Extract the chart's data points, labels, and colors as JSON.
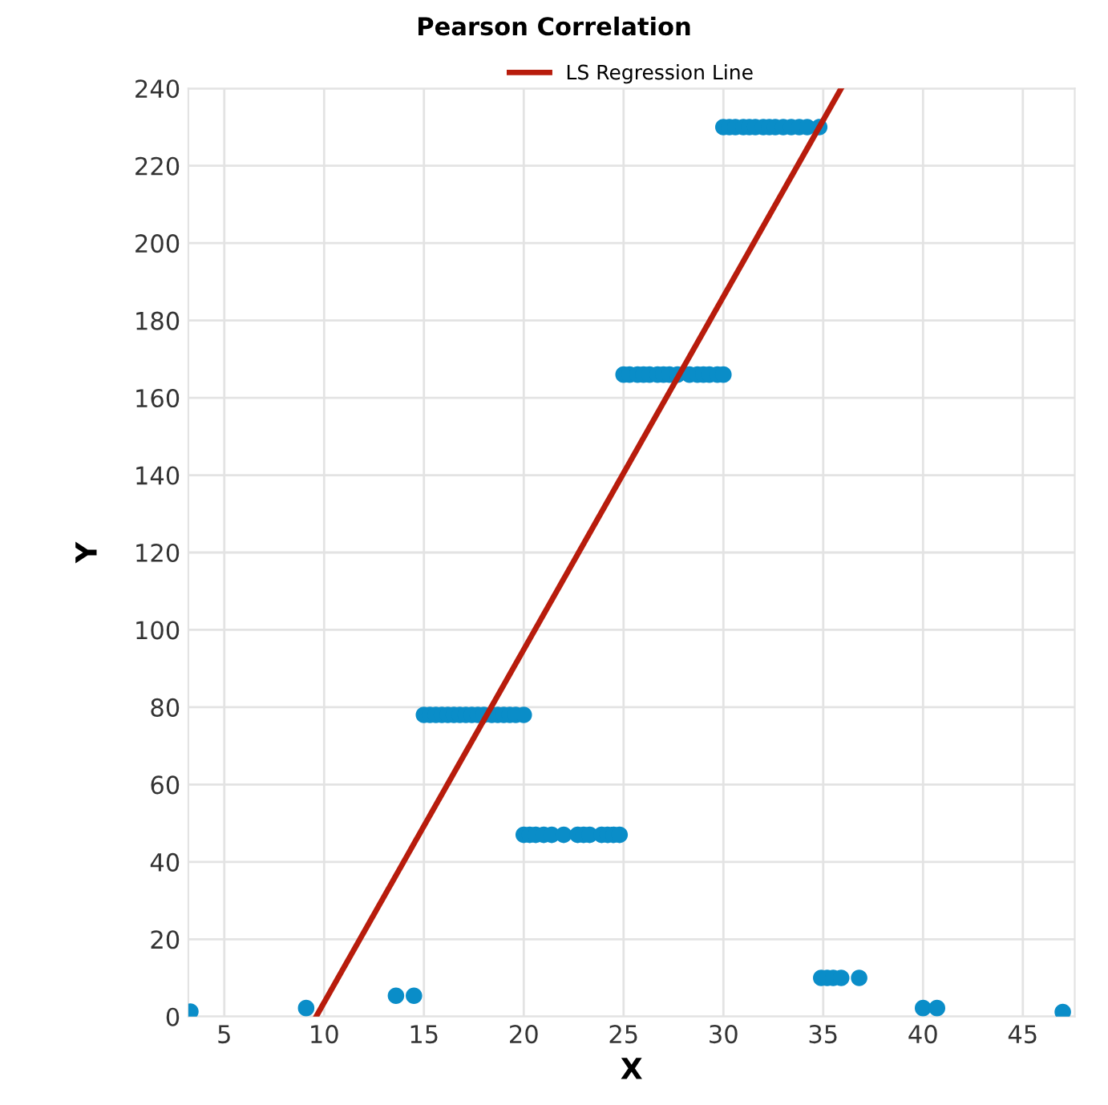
{
  "chart_data": {
    "type": "scatter",
    "title": "Pearson Correlation",
    "xlabel": "X",
    "ylabel": "Y",
    "xlim": [
      3.2,
      47.6
    ],
    "ylim": [
      0,
      240
    ],
    "xticks": [
      5,
      10,
      15,
      20,
      25,
      30,
      35,
      40,
      45
    ],
    "yticks": [
      0,
      20,
      40,
      60,
      80,
      100,
      120,
      140,
      160,
      180,
      200,
      220,
      240
    ],
    "grid": true,
    "legend": "top",
    "series": [
      {
        "color": "#0a8dc8",
        "marker": "circle",
        "x": [
          3.3,
          9.1,
          13.6,
          14.5,
          15.0,
          15.3,
          15.6,
          15.9,
          16.2,
          16.5,
          16.8,
          17.1,
          17.4,
          17.7,
          18.0,
          18.4,
          18.7,
          19.0,
          19.3,
          19.6,
          20.0,
          20.0,
          20.3,
          20.6,
          21.0,
          21.4,
          22.0,
          22.7,
          23.0,
          23.3,
          23.9,
          24.2,
          24.5,
          24.8,
          25.0,
          25.3,
          25.7,
          26.0,
          26.3,
          26.7,
          27.0,
          27.3,
          27.7,
          28.3,
          28.7,
          29.0,
          29.3,
          29.7,
          30.0,
          30.0,
          30.3,
          30.6,
          31.0,
          31.3,
          31.6,
          32.0,
          32.3,
          32.6,
          33.0,
          33.4,
          33.8,
          34.2,
          34.8,
          34.9,
          35.2,
          35.5,
          35.9,
          36.8,
          40.0,
          40.7,
          47.0
        ],
        "values": [
          1.3,
          2.2,
          5.4,
          5.4,
          78,
          78,
          78,
          78,
          78,
          78,
          78,
          78,
          78,
          78,
          78,
          78,
          78,
          78,
          78,
          78,
          78,
          47,
          47,
          47,
          47,
          47,
          47,
          47,
          47,
          47,
          47,
          47,
          47,
          47,
          166,
          166,
          166,
          166,
          166,
          166,
          166,
          166,
          166,
          166,
          166,
          166,
          166,
          166,
          166,
          230,
          230,
          230,
          230,
          230,
          230,
          230,
          230,
          230,
          230,
          230,
          230,
          230,
          230,
          10,
          10,
          10,
          10,
          10,
          2.2,
          2.2,
          1.2
        ]
      },
      {
        "type": "line",
        "name": "LS Regression Line",
        "color": "#b81c0c",
        "marker": "none",
        "line_style": "solid",
        "x": [
          9.6,
          35.9
        ],
        "values": [
          0,
          240
        ]
      }
    ]
  }
}
